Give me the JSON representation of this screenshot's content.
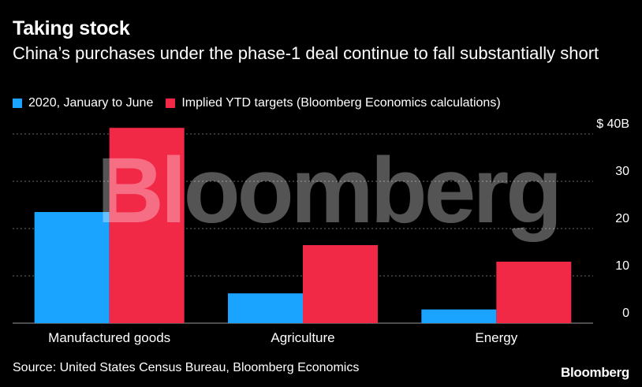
{
  "colors": {
    "series1": "#1aa3ff",
    "series2": "#f22847",
    "grid": "#6b6b6b",
    "text": "#ffffff"
  },
  "header": {
    "title": "Taking stock",
    "subtitle": "China’s purchases under the phase-1 deal continue to fall substantially short"
  },
  "footer": {
    "source": "Source: United States Census Bureau, Bloomberg Economics",
    "brand": "Bloomberg"
  },
  "watermark": "Bloomberg",
  "chart_data": {
    "type": "bar",
    "title": "Taking stock",
    "categories": [
      "Manufactured goods",
      "Agriculture",
      "Energy"
    ],
    "series": [
      {
        "name": "2020, January to June",
        "values": [
          23.5,
          6.3,
          2.9
        ]
      },
      {
        "name": "Implied YTD targets (Bloomberg Economics calculations)",
        "values": [
          41.3,
          16.5,
          13.0
        ]
      }
    ],
    "ylim": [
      0,
      40
    ],
    "yticks": [
      0,
      10,
      20,
      30,
      40
    ],
    "ytick_labels": [
      "0",
      "10",
      "20",
      "30",
      "$ 40B"
    ],
    "grid": true,
    "legend": "top-left",
    "xlabel": "",
    "ylabel": ""
  }
}
